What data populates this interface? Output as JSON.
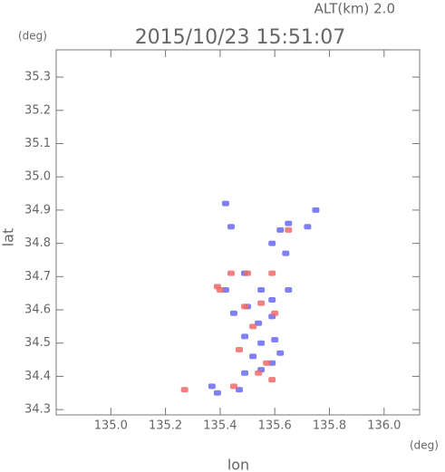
{
  "chart_data": {
    "type": "scatter",
    "title": "2015/10/23 15:51:07",
    "subtitle": "ALT(km) 2.0",
    "y_unit": "(deg)",
    "x_unit": "(deg)",
    "x_label": "lon",
    "y_label": "lat",
    "xlim": [
      134.8,
      136.13
    ],
    "ylim": [
      34.284,
      35.382
    ],
    "xticks": [
      {
        "value": 135,
        "label": "135.0"
      },
      135.2,
      135.4,
      135.6,
      135.8,
      {
        "value": 136,
        "label": "136.0"
      }
    ],
    "yticks": [
      34.3,
      34.4,
      34.5,
      34.6,
      34.7,
      34.8,
      34.9,
      {
        "value": 35,
        "label": "35.0"
      },
      35.1,
      35.2,
      35.3
    ],
    "series": [
      {
        "color": "#6a6af0",
        "x": [
          135.42,
          135.44,
          135.62,
          135.65,
          135.59,
          135.64,
          135.49,
          135.55,
          135.59,
          135.5,
          135.45,
          135.54,
          135.59,
          135.49,
          135.55,
          135.6,
          135.52,
          135.59,
          135.49,
          135.47,
          135.39,
          135.37,
          135.55,
          135.62,
          135.42,
          135.65,
          135.75,
          135.72
        ],
        "y": [
          34.92,
          34.85,
          34.84,
          34.86,
          34.8,
          34.77,
          34.71,
          34.66,
          34.63,
          34.61,
          34.59,
          34.56,
          34.58,
          34.52,
          34.5,
          34.51,
          34.46,
          34.44,
          34.41,
          34.36,
          34.35,
          34.37,
          34.42,
          34.47,
          34.66,
          34.66,
          34.9,
          34.85
        ]
      },
      {
        "color": "#f06a6a",
        "x": [
          135.27,
          135.45,
          135.49,
          135.55,
          135.4,
          135.52,
          135.47,
          135.57,
          135.54,
          135.59,
          135.5,
          135.65,
          135.59,
          135.44,
          135.6,
          135.39
        ],
        "y": [
          34.36,
          34.37,
          34.61,
          34.62,
          34.66,
          34.55,
          34.48,
          34.44,
          34.41,
          34.39,
          34.71,
          34.84,
          34.71,
          34.71,
          34.59,
          34.67
        ]
      }
    ]
  }
}
